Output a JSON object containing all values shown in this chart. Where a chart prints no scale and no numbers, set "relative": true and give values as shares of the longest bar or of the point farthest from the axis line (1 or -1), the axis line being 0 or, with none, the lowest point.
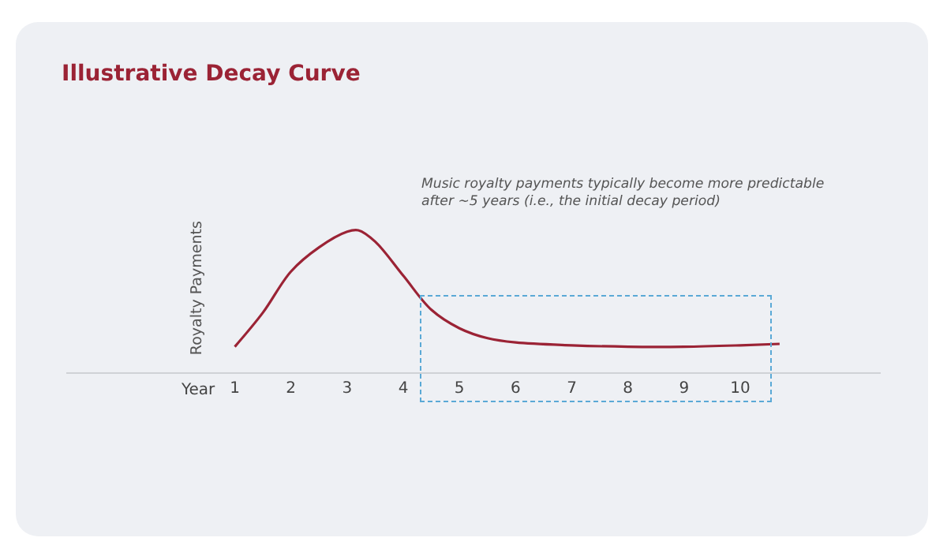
{
  "chart_data": {
    "type": "line",
    "title": "Illustrative Decay Curve",
    "xlabel": "Year",
    "ylabel": "Royalty Payments",
    "relative": true,
    "x": [
      1,
      1.5,
      2,
      2.5,
      3,
      3.2,
      3.5,
      4,
      4.5,
      5,
      5.5,
      6,
      7,
      8,
      9,
      10,
      10.7
    ],
    "series": [
      {
        "color": "#9b2335",
        "values": [
          0.18,
          0.42,
          0.71,
          0.88,
          0.99,
          1,
          0.92,
          0.68,
          0.44,
          0.31,
          0.24,
          0.21,
          0.19,
          0.18,
          0.18,
          0.19,
          0.2
        ]
      }
    ],
    "xlim": [
      -2,
      12.5
    ],
    "xticks": [
      1,
      2,
      3,
      4,
      5,
      6,
      7,
      8,
      9,
      10
    ],
    "annotations": [
      "Music royalty payments typically become more predictable after ~5 years (i.e., the initial decay period)"
    ]
  }
}
